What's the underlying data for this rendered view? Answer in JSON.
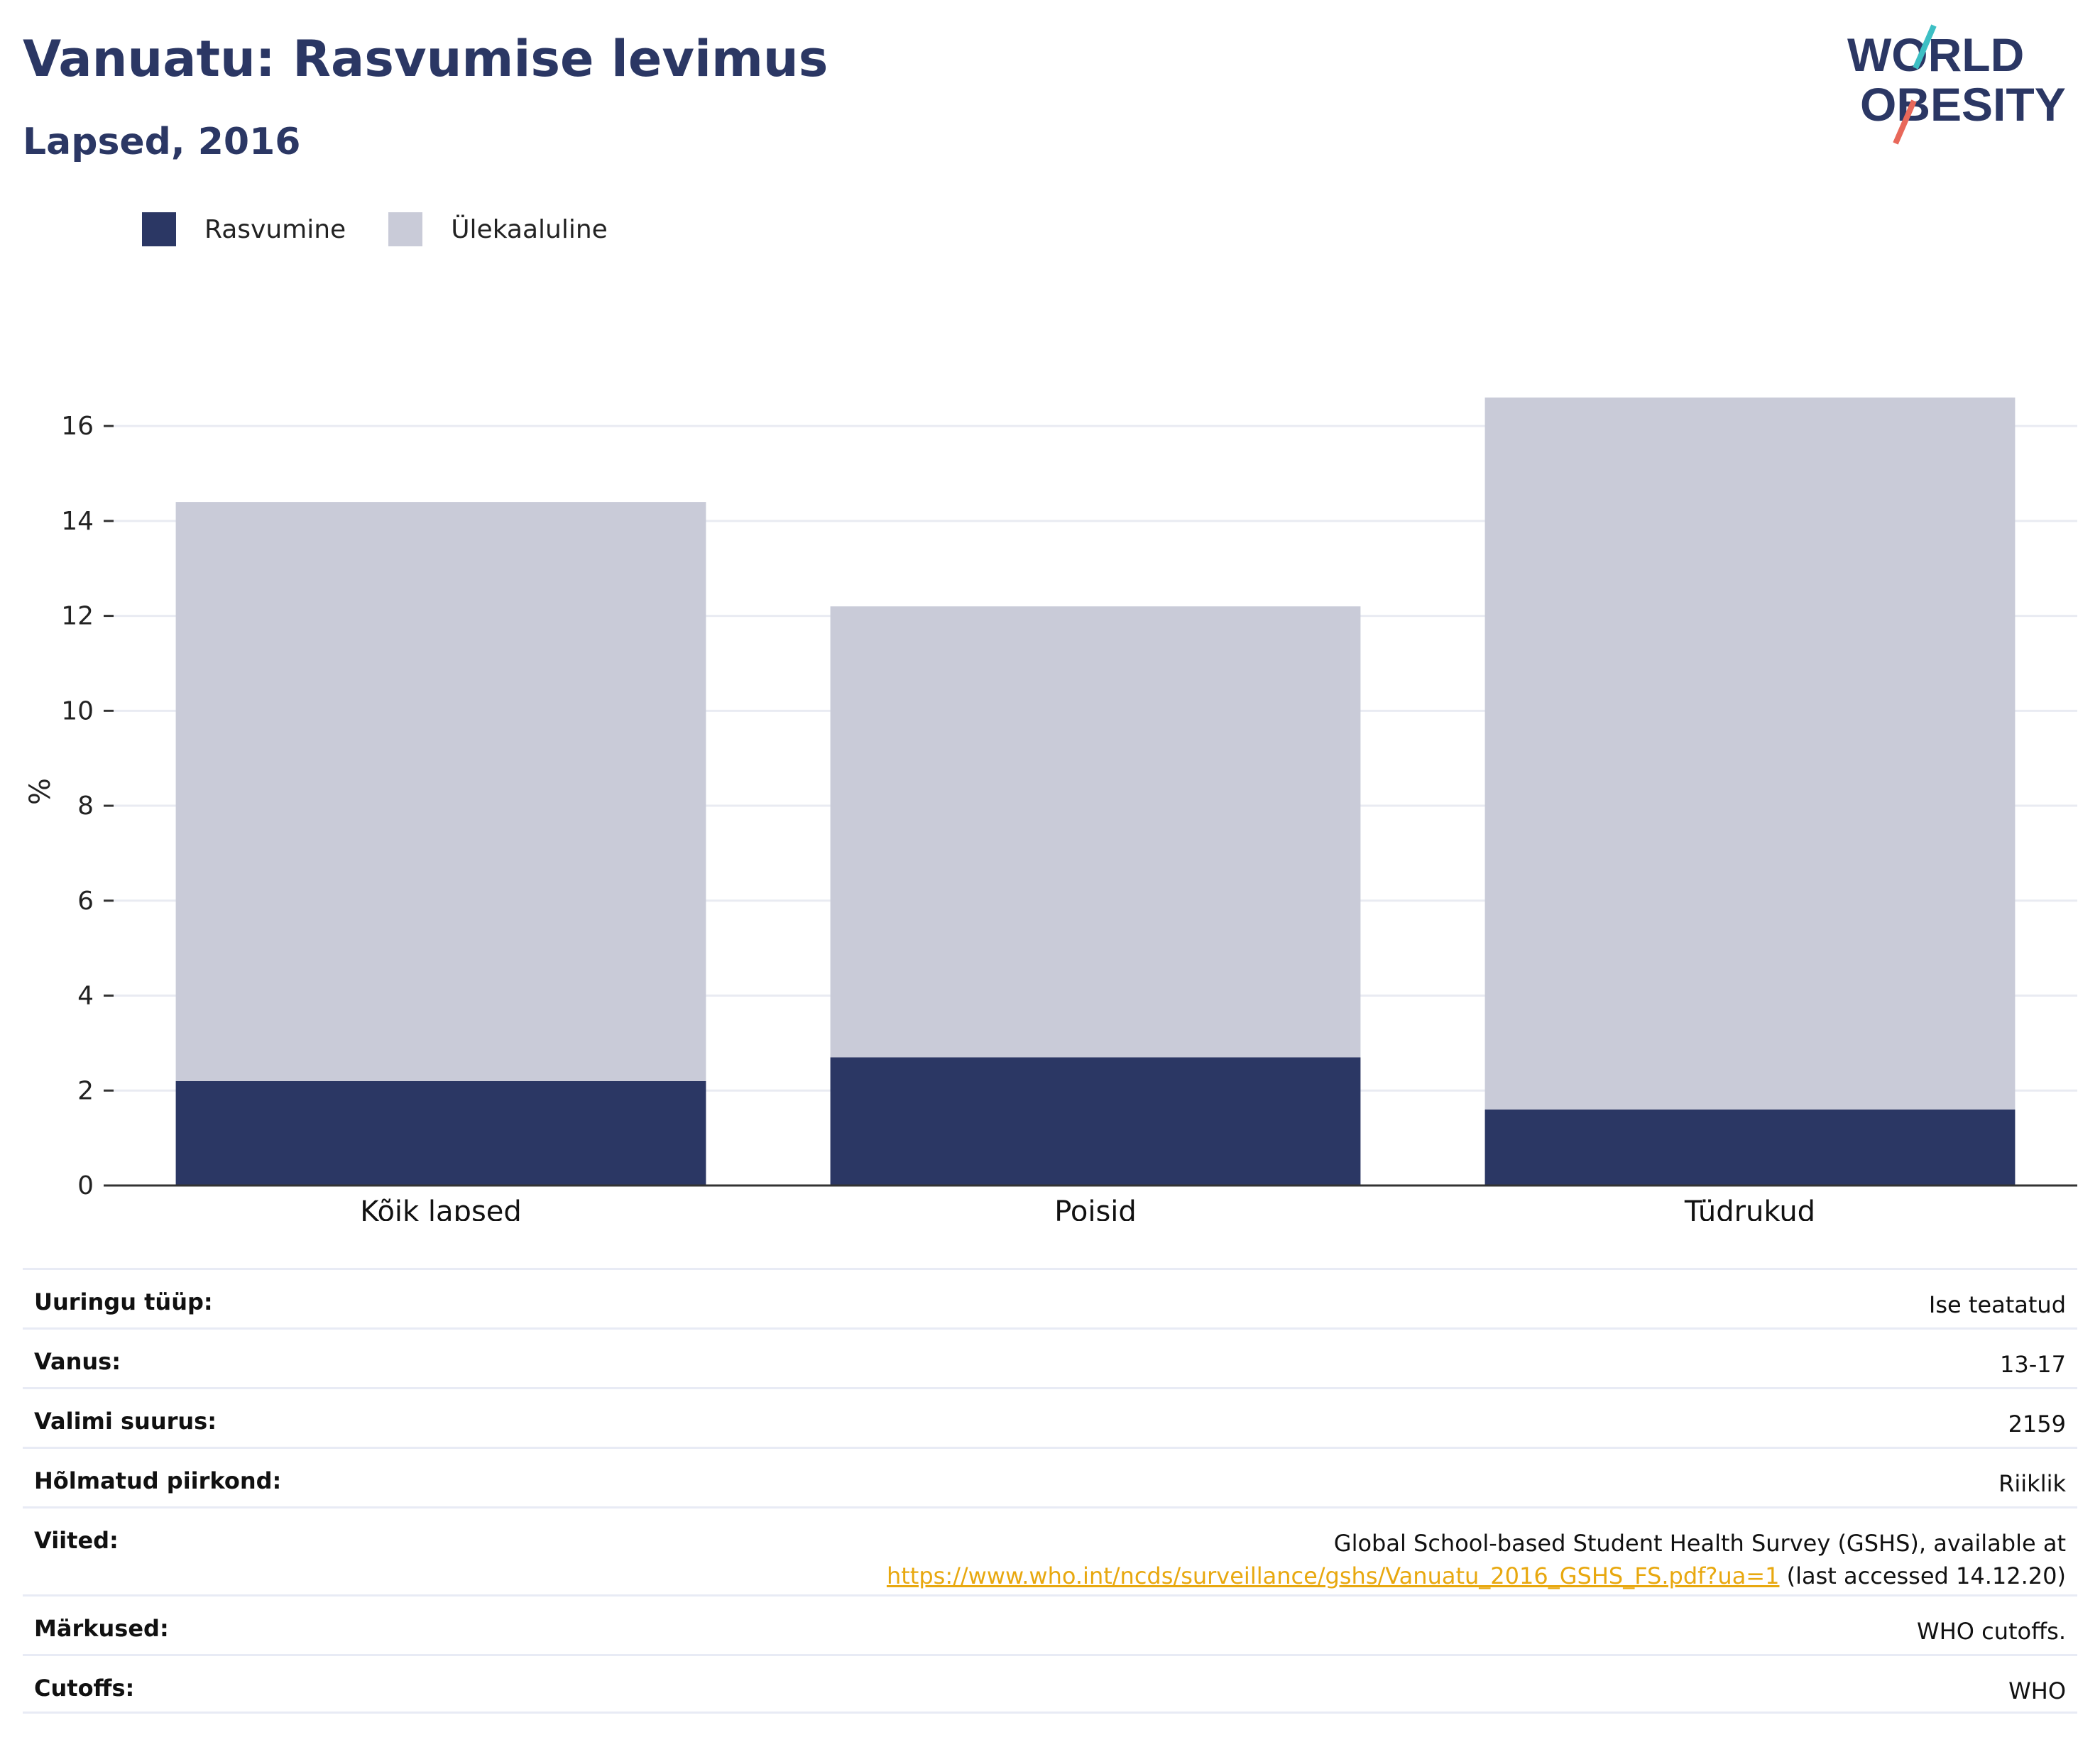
{
  "header": {
    "title": "Vanuatu: Rasvumise levimus",
    "subtitle": "Lapsed, 2016"
  },
  "logo": {
    "line1": "WORLD",
    "line2": "OBESITY",
    "colors": {
      "text": "#2b3764",
      "slash_top": "#3dbfc4",
      "slash_bottom": "#e8685a"
    }
  },
  "legend": [
    {
      "label": "Rasvumine",
      "color": "#2b3764"
    },
    {
      "label": "Ülekaaluline",
      "color": "#c9cbd8"
    }
  ],
  "chart_data": {
    "type": "bar",
    "stacked": true,
    "categories": [
      "Kõik lapsed",
      "Poisid",
      "Tüdrukud"
    ],
    "series": [
      {
        "name": "Rasvumine",
        "values": [
          2.2,
          2.7,
          1.6
        ],
        "color": "#2b3764"
      },
      {
        "name": "Ülekaaluline",
        "values": [
          12.2,
          9.5,
          15.0
        ],
        "color": "#c9cbd8"
      }
    ],
    "title": "",
    "xlabel": "",
    "ylabel": "%",
    "ylim": [
      0,
      16.6
    ],
    "yticks": [
      0,
      2,
      4,
      6,
      8,
      10,
      12,
      14,
      16
    ],
    "grid": true,
    "legend_position": "top-left"
  },
  "info": {
    "rows": [
      {
        "label": "Uuringu tüüp:",
        "value": "Ise teatatud"
      },
      {
        "label": "Vanus:",
        "value": "13-17"
      },
      {
        "label": "Valimi suurus:",
        "value": "2159"
      },
      {
        "label": "Hõlmatud piirkond:",
        "value": "Riiklik"
      }
    ],
    "references": {
      "label": "Viited:",
      "line1": "Global School-based Student Health Survey (GSHS), available at",
      "link": "https://www.who.int/ncds/surveillance/gshs/Vanuatu_2016_GSHS_FS.pdf?ua=1",
      "after_link": " (last accessed 14.12.20)"
    },
    "notes": {
      "label": "Märkused:",
      "value": "WHO cutoffs."
    },
    "cutoffs": {
      "label": "Cutoffs:",
      "value": "WHO"
    }
  }
}
